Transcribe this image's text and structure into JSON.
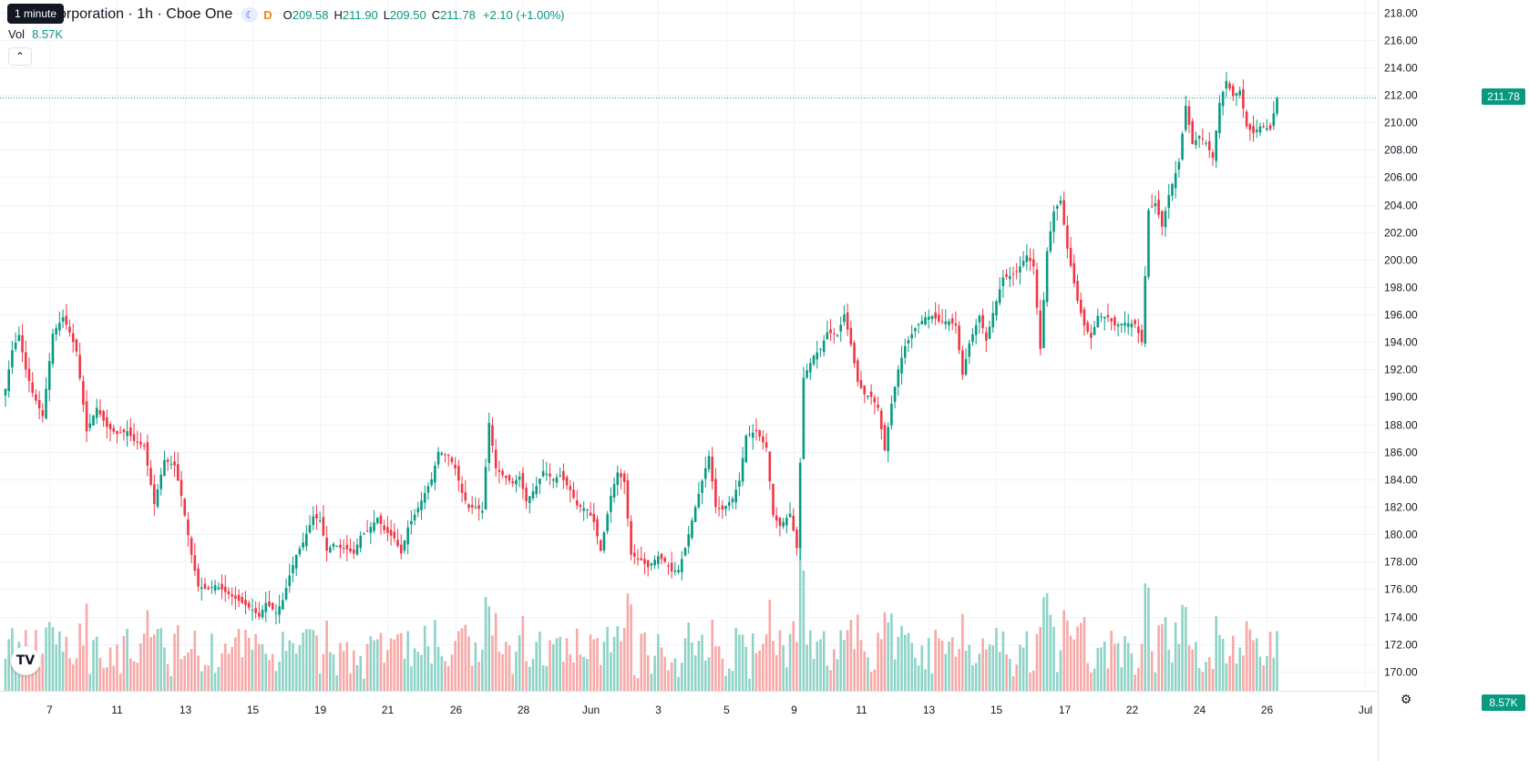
{
  "legend": {
    "title": "orporation · 1h · Cboe One",
    "open_label": "O",
    "open": "209.58",
    "high_label": "H",
    "high": "211.90",
    "low_label": "L",
    "low": "209.50",
    "close_label": "C",
    "close": "211.78",
    "change": "+2.10 (+1.00%)",
    "delay_letter": "D",
    "moon_icon": "moon-icon"
  },
  "tooltip": "1 minute",
  "volume": {
    "label": "Vol",
    "value": "8.57K"
  },
  "collapse_icon": "chevron-up-icon",
  "logo_text": "TV",
  "settings_icon": "gear-icon",
  "colors": {
    "up": "#089981",
    "down": "#f23645",
    "up_vol": "#8fd3c7",
    "down_vol": "#f7a9a7"
  },
  "chart_data": {
    "type": "candlestick",
    "ylim": [
      168.6,
      218.5
    ],
    "y_ticks": [
      "218.00",
      "216.00",
      "214.00",
      "212.00",
      "210.00",
      "208.00",
      "206.00",
      "204.00",
      "202.00",
      "200.00",
      "198.00",
      "196.00",
      "194.00",
      "192.00",
      "190.00",
      "188.00",
      "186.00",
      "184.00",
      "182.00",
      "180.00",
      "178.00",
      "176.00",
      "174.00",
      "172.00",
      "170.00"
    ],
    "x_ticks": [
      {
        "label": "7",
        "i": 13
      },
      {
        "label": "11",
        "i": 33
      },
      {
        "label": "13",
        "i": 53
      },
      {
        "label": "15",
        "i": 73
      },
      {
        "label": "19",
        "i": 93
      },
      {
        "label": "21",
        "i": 113
      },
      {
        "label": "26",
        "i": 133
      },
      {
        "label": "28",
        "i": 153
      },
      {
        "label": "Jun",
        "i": 173
      },
      {
        "label": "3",
        "i": 193
      },
      {
        "label": "5",
        "i": 213
      },
      {
        "label": "9",
        "i": 233
      },
      {
        "label": "11",
        "i": 253
      },
      {
        "label": "13",
        "i": 273
      },
      {
        "label": "15",
        "i": 293
      },
      {
        "label": "17",
        "i": 313
      },
      {
        "label": "22",
        "i": 333
      },
      {
        "label": "24",
        "i": 353
      },
      {
        "label": "26",
        "i": 373
      },
      {
        "label": "Jul",
        "i": 402
      }
    ],
    "x_slots": 402,
    "last_price_label": "211.78",
    "last_price": 211.78,
    "last_volume_label": "8.57K",
    "close_anchors": [
      [
        0,
        190.6
      ],
      [
        2,
        193.4
      ],
      [
        4,
        194.5
      ],
      [
        6,
        192.0
      ],
      [
        8,
        190.3
      ],
      [
        11,
        188.6
      ],
      [
        14,
        194.6
      ],
      [
        17,
        195.8
      ],
      [
        19,
        194.7
      ],
      [
        21,
        193.3
      ],
      [
        24,
        187.5
      ],
      [
        27,
        189.2
      ],
      [
        30,
        187.8
      ],
      [
        33,
        187.3
      ],
      [
        36,
        187.5
      ],
      [
        38,
        186.8
      ],
      [
        41,
        186.4
      ],
      [
        44,
        182.2
      ],
      [
        47,
        185.4
      ],
      [
        50,
        185.0
      ],
      [
        52,
        182.8
      ],
      [
        55,
        178.5
      ],
      [
        57,
        176.2
      ],
      [
        60,
        176.0
      ],
      [
        62,
        176.3
      ],
      [
        65,
        175.8
      ],
      [
        68,
        175.3
      ],
      [
        70,
        175.0
      ],
      [
        73,
        174.5
      ],
      [
        75,
        174.0
      ],
      [
        77,
        175.0
      ],
      [
        80,
        174.3
      ],
      [
        82,
        175.2
      ],
      [
        84,
        177.0
      ],
      [
        86,
        178.5
      ],
      [
        88,
        179.4
      ],
      [
        91,
        181.3
      ],
      [
        93,
        181.0
      ],
      [
        95,
        178.8
      ],
      [
        97,
        179.3
      ],
      [
        99,
        179.0
      ],
      [
        101,
        178.9
      ],
      [
        103,
        178.6
      ],
      [
        105,
        179.9
      ],
      [
        107,
        180.2
      ],
      [
        110,
        181.2
      ],
      [
        112,
        180.3
      ],
      [
        115,
        179.7
      ],
      [
        117,
        178.6
      ],
      [
        119,
        180.5
      ],
      [
        122,
        181.9
      ],
      [
        124,
        183.0
      ],
      [
        126,
        184.0
      ],
      [
        128,
        186.0
      ],
      [
        131,
        185.7
      ],
      [
        133,
        184.8
      ],
      [
        135,
        183.0
      ],
      [
        137,
        181.9
      ],
      [
        139,
        182.0
      ],
      [
        141,
        181.7
      ],
      [
        143,
        188.1
      ],
      [
        145,
        184.8
      ],
      [
        147,
        184.3
      ],
      [
        150,
        183.7
      ],
      [
        152,
        184.2
      ],
      [
        154,
        182.4
      ],
      [
        157,
        183.5
      ],
      [
        159,
        184.6
      ],
      [
        162,
        184.0
      ],
      [
        164,
        184.3
      ],
      [
        167,
        183.2
      ],
      [
        169,
        182.1
      ],
      [
        172,
        181.8
      ],
      [
        174,
        180.9
      ],
      [
        176,
        178.8
      ],
      [
        179,
        182.8
      ],
      [
        181,
        184.5
      ],
      [
        183,
        183.8
      ],
      [
        185,
        178.5
      ],
      [
        188,
        178.1
      ],
      [
        190,
        177.6
      ],
      [
        193,
        178.4
      ],
      [
        195,
        178.0
      ],
      [
        197,
        177.3
      ],
      [
        199,
        177.4
      ],
      [
        201,
        179.0
      ],
      [
        203,
        181.0
      ],
      [
        206,
        183.9
      ],
      [
        208,
        185.7
      ],
      [
        210,
        182.0
      ],
      [
        212,
        181.8
      ],
      [
        215,
        182.6
      ],
      [
        217,
        183.9
      ],
      [
        219,
        187.2
      ],
      [
        222,
        187.5
      ],
      [
        225,
        186.3
      ],
      [
        227,
        181.4
      ],
      [
        229,
        180.6
      ],
      [
        232,
        181.5
      ],
      [
        234,
        179.0
      ],
      [
        236,
        191.4
      ],
      [
        239,
        193.0
      ],
      [
        241,
        193.5
      ],
      [
        243,
        194.7
      ],
      [
        246,
        194.5
      ],
      [
        248,
        196.0
      ],
      [
        250,
        193.8
      ],
      [
        252,
        191.1
      ],
      [
        254,
        190.2
      ],
      [
        256,
        190.0
      ],
      [
        258,
        189.2
      ],
      [
        260,
        186.1
      ],
      [
        262,
        189.5
      ],
      [
        264,
        192.0
      ],
      [
        266,
        193.7
      ],
      [
        269,
        195.0
      ],
      [
        272,
        195.8
      ],
      [
        274,
        195.9
      ],
      [
        276,
        195.5
      ],
      [
        279,
        195.5
      ],
      [
        281,
        195.2
      ],
      [
        283,
        191.6
      ],
      [
        285,
        193.9
      ],
      [
        288,
        195.9
      ],
      [
        290,
        194.1
      ],
      [
        292,
        196.1
      ],
      [
        295,
        198.7
      ],
      [
        297,
        198.8
      ],
      [
        299,
        199.1
      ],
      [
        302,
        200.3
      ],
      [
        304,
        199.5
      ],
      [
        306,
        193.5
      ],
      [
        308,
        200.6
      ],
      [
        310,
        203.5
      ],
      [
        312,
        204.3
      ],
      [
        314,
        200.8
      ],
      [
        317,
        197.0
      ],
      [
        319,
        195.2
      ],
      [
        321,
        194.3
      ],
      [
        323,
        195.9
      ],
      [
        326,
        195.8
      ],
      [
        328,
        195.2
      ],
      [
        331,
        195.4
      ],
      [
        334,
        195.3
      ],
      [
        336,
        194.0
      ],
      [
        338,
        203.6
      ],
      [
        340,
        204.1
      ],
      [
        342,
        202.4
      ],
      [
        344,
        204.7
      ],
      [
        347,
        207.1
      ],
      [
        349,
        211.2
      ],
      [
        351,
        208.4
      ],
      [
        353,
        209.0
      ],
      [
        355,
        208.5
      ],
      [
        357,
        207.4
      ],
      [
        359,
        211.4
      ],
      [
        361,
        213.0
      ],
      [
        363,
        211.9
      ],
      [
        365,
        212.3
      ],
      [
        367,
        209.7
      ],
      [
        369,
        209.2
      ],
      [
        371,
        209.7
      ],
      [
        374,
        209.5
      ],
      [
        376,
        211.78
      ]
    ],
    "volume_max_label": "8.57K"
  }
}
